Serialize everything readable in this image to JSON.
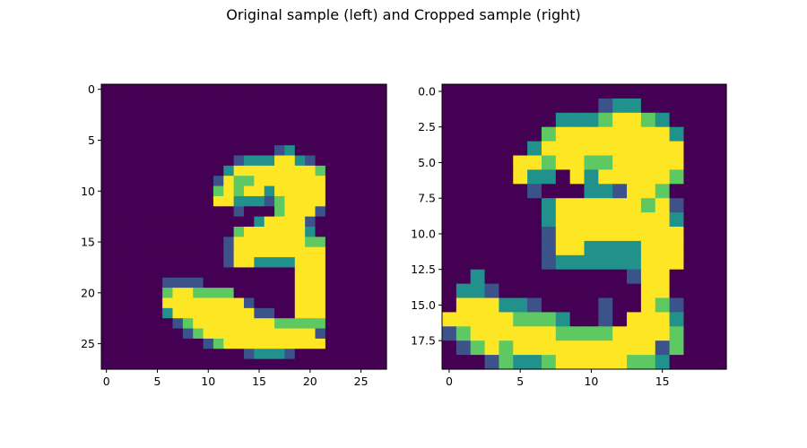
{
  "figure": {
    "title": "Original sample (left) and Cropped sample (right)"
  },
  "colormap": {
    "name": "viridis",
    "stops": [
      "#440154",
      "#3b528b",
      "#21918c",
      "#5ec962",
      "#fde725"
    ]
  },
  "chart_data": [
    {
      "type": "heatmap",
      "title": "",
      "grid": false,
      "xlim": [
        -0.5,
        27.5
      ],
      "ylim": [
        27.5,
        -0.5
      ],
      "xticks": [
        0,
        5,
        10,
        15,
        20,
        25
      ],
      "yticks": [
        0,
        5,
        10,
        15,
        20,
        25
      ],
      "xtick_labels": [
        "0",
        "5",
        "10",
        "15",
        "20",
        "25"
      ],
      "ytick_labels": [
        "0",
        "5",
        "10",
        "15",
        "20",
        "25"
      ],
      "rows": [
        "0000000000000000000000000000",
        "0000000000000000000000000000",
        "0000000000000000000000000000",
        "0000000000000000000000000000",
        "0000000000000000000000000000",
        "0000000000000000000000000000",
        "0000000000000000012000000000",
        "0000000000000122244210000000",
        "0000000000002444444443000000",
        "0000000000014334444444000000",
        "0000000000034344244444000000",
        "0000000000044222134444000000",
        "0000000000000100034441000000",
        "0000000000000002444410000000",
        "0000000000000344444420000000",
        "0000000000001444444433000000",
        "0000000000001444444444000000",
        "0000000000001442222444000000",
        "0000000000000000000444000000",
        "0000001111000000000444000000",
        "0000003443333000000444000000",
        "0000004444444410000444000000",
        "0000002444444441100444000000",
        "0000000134444444433333000000",
        "0000000013444444444441000000",
        "0000000000134444444444000000",
        "0000000000000012221000000000",
        "0000000000000000000000000000"
      ]
    },
    {
      "type": "heatmap",
      "title": "",
      "grid": false,
      "xlim": [
        -0.5,
        19.5
      ],
      "ylim": [
        19.5,
        -0.5
      ],
      "xticks": [
        0,
        5,
        10,
        15
      ],
      "yticks": [
        0.0,
        2.5,
        5.0,
        7.5,
        10.0,
        12.5,
        15.0,
        17.5
      ],
      "xtick_labels": [
        "0",
        "5",
        "10",
        "15"
      ],
      "ytick_labels": [
        "0.0",
        "2.5",
        "5.0",
        "7.5",
        "10.0",
        "12.5",
        "15.0",
        "17.5"
      ],
      "rows": [
        "00000000000000000000",
        "00000000000122000000",
        "00000000222344320000",
        "00000003444444442000",
        "00000024444444444000",
        "00000443443344444000",
        "00000422042444443000",
        "00000010002214430000",
        "00000002444444341000",
        "00000002444444442000",
        "00000001444444444000",
        "00000001442222444000",
        "00000001222222444000",
        "00200000000001440000",
        "02210000000000440000",
        "04442210000100431000",
        "44444333200104442000",
        "13444444333344443000",
        "01343444444444413000",
        "00013223444443320000"
      ]
    }
  ]
}
